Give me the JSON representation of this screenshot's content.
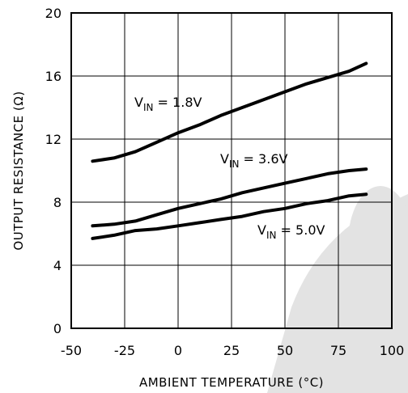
{
  "chart_data": {
    "type": "line",
    "xlabel": "AMBIENT TEMPERATURE (°C)",
    "ylabel": "OUTPUT RESISTANCE (Ω)",
    "xlim": [
      -50,
      100
    ],
    "ylim": [
      0,
      20
    ],
    "x_ticks": [
      "-50",
      "-25",
      "0",
      "25",
      "50",
      "75",
      "100"
    ],
    "y_ticks": [
      "0",
      "4",
      "8",
      "12",
      "16",
      "20"
    ],
    "grid": true,
    "series": [
      {
        "name": "V_IN = 1.8V",
        "label_main": "V",
        "label_sub": "IN",
        "label_rest": " = 1.8V",
        "x": [
          -40,
          -30,
          -20,
          -10,
          0,
          10,
          20,
          30,
          40,
          50,
          60,
          70,
          80,
          88
        ],
        "y": [
          10.6,
          10.8,
          11.2,
          11.8,
          12.4,
          12.9,
          13.5,
          14.0,
          14.5,
          15.0,
          15.5,
          15.9,
          16.3,
          16.8
        ]
      },
      {
        "name": "V_IN = 3.6V",
        "label_main": "V",
        "label_sub": "IN",
        "label_rest": " = 3.6V",
        "x": [
          -40,
          -30,
          -20,
          -10,
          0,
          10,
          20,
          30,
          40,
          50,
          60,
          70,
          80,
          88
        ],
        "y": [
          6.5,
          6.6,
          6.8,
          7.2,
          7.6,
          7.9,
          8.2,
          8.6,
          8.9,
          9.2,
          9.5,
          9.8,
          10.0,
          10.1
        ]
      },
      {
        "name": "V_IN = 5.0V",
        "label_main": "V",
        "label_sub": "IN",
        "label_rest": " = 5.0V",
        "x": [
          -40,
          -30,
          -20,
          -10,
          0,
          10,
          20,
          30,
          40,
          50,
          60,
          70,
          80,
          88
        ],
        "y": [
          5.7,
          5.9,
          6.2,
          6.3,
          6.5,
          6.7,
          6.9,
          7.1,
          7.4,
          7.6,
          7.9,
          8.1,
          8.4,
          8.5
        ]
      }
    ],
    "colors": {
      "line": "#000000",
      "grid": "#000000",
      "watermark": "#d9d9d9"
    }
  }
}
